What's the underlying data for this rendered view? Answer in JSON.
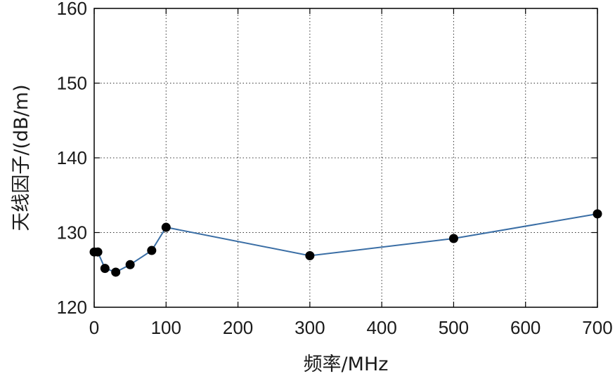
{
  "chart_data": {
    "type": "line",
    "xlabel": "频率/MHz",
    "ylabel": "天线因子/(dB/m)",
    "xlim": [
      0,
      700
    ],
    "ylim": [
      120,
      160
    ],
    "xticks": [
      0,
      100,
      200,
      300,
      400,
      500,
      600,
      700
    ],
    "yticks": [
      120,
      130,
      140,
      150,
      160
    ],
    "xtick_labels": [
      "0",
      "100",
      "200",
      "300",
      "400",
      "500",
      "600",
      "700"
    ],
    "ytick_labels": [
      "120",
      "130",
      "140",
      "150",
      "160"
    ],
    "grid": true,
    "series": [
      {
        "x": [
          0,
          5,
          15,
          30,
          50,
          80,
          100,
          300,
          500,
          700
        ],
        "y": [
          127.4,
          127.4,
          125.2,
          124.7,
          125.7,
          127.6,
          130.7,
          126.9,
          129.2,
          132.5
        ],
        "color": "#3a6ea5",
        "marker_color": "#000000"
      }
    ]
  }
}
